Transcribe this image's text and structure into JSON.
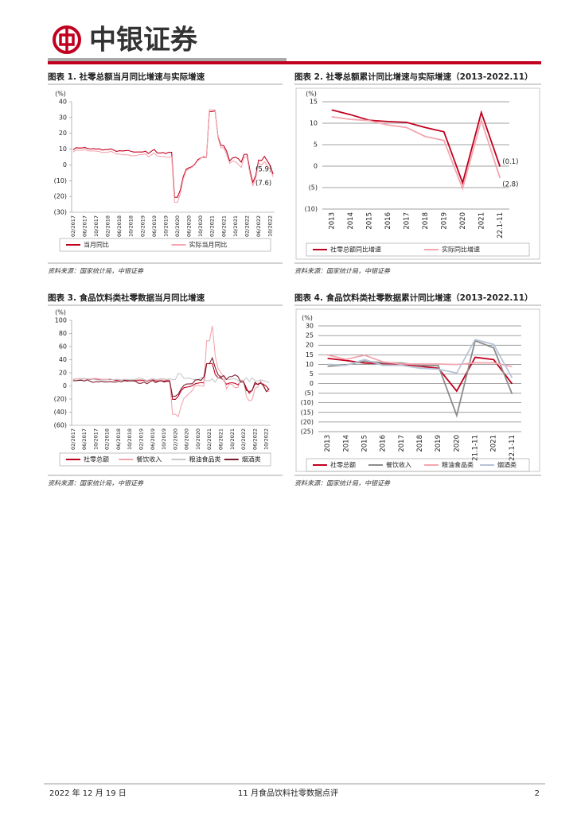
{
  "header": {
    "brand": "中银证券"
  },
  "footer": {
    "date": "2022 年 12 月 19 日",
    "report": "11 月食品饮料社零数据点评",
    "page": "2"
  },
  "chart_data": [
    {
      "type": "line",
      "title": "图表 1. 社零总额当月同比增速与实际增速",
      "source": "资料来源：国家统计局，中银证券",
      "y_label": "(%)",
      "grid": false,
      "categories": [
        "02/2017",
        null,
        null,
        null,
        "06/2017",
        null,
        null,
        null,
        "10/2017",
        null,
        null,
        null,
        "02/2018",
        null,
        null,
        null,
        "06/2018",
        null,
        null,
        null,
        "10/2018",
        null,
        null,
        null,
        "02/2019",
        null,
        null,
        null,
        "06/2019",
        null,
        null,
        null,
        "10/2019",
        null,
        null,
        null,
        "02/2020",
        null,
        null,
        null,
        "06/2020",
        null,
        null,
        null,
        "10/2020",
        null,
        null,
        null,
        "02/2021",
        null,
        null,
        null,
        "06/2021",
        null,
        null,
        null,
        "10/2021",
        null,
        null,
        null,
        "02/2022",
        null,
        null,
        null,
        "06/2022",
        null,
        null,
        null,
        "10/2022",
        null
      ],
      "ylim": [
        -30,
        40
      ],
      "yticks": [
        {
          "value": -30,
          "label": "(30)"
        },
        {
          "value": -20,
          "label": "(20)"
        },
        {
          "value": -10,
          "label": "(10)"
        },
        0,
        10,
        20,
        30,
        40
      ],
      "series": [
        {
          "name": "当月同比",
          "color": "#c0001e",
          "values": [
            9.5,
            10.9,
            10.7,
            10.7,
            11.0,
            10.4,
            10.1,
            10.3,
            10.0,
            10.2,
            9.4,
            9.7,
            9.7,
            10.1,
            9.4,
            8.5,
            9.0,
            8.8,
            9.0,
            9.2,
            8.6,
            8.1,
            8.2,
            8.2,
            8.2,
            8.7,
            7.2,
            8.6,
            9.8,
            7.6,
            7.5,
            7.8,
            7.2,
            8.0,
            8.0,
            -20.5,
            -20.5,
            -15.8,
            -7.5,
            -2.8,
            -1.8,
            -1.1,
            0.5,
            3.3,
            4.3,
            5.0,
            4.6,
            33.8,
            33.8,
            34.2,
            17.7,
            12.4,
            12.1,
            8.5,
            2.5,
            4.4,
            4.9,
            3.9,
            1.7,
            6.7,
            6.7,
            -3.5,
            -11.1,
            -6.7,
            3.1,
            2.7,
            5.4,
            2.5,
            -0.5,
            -5.9
          ],
          "value_labels": [
            null,
            null,
            null,
            null,
            null,
            null,
            null,
            null,
            null,
            null,
            null,
            null,
            null,
            null,
            null,
            null,
            null,
            null,
            null,
            null,
            null,
            null,
            null,
            null,
            null,
            null,
            null,
            null,
            null,
            null,
            null,
            null,
            null,
            null,
            null,
            null,
            null,
            null,
            null,
            null,
            null,
            null,
            null,
            null,
            null,
            null,
            null,
            null,
            null,
            null,
            null,
            null,
            null,
            null,
            null,
            null,
            null,
            null,
            null,
            null,
            null,
            null,
            null,
            null,
            null,
            null,
            null,
            null,
            null,
            "(5.9)"
          ]
        },
        {
          "name": "实际当月同比",
          "color": "#f4a6b0",
          "values": [
            8.1,
            9.4,
            9.3,
            9.2,
            9.7,
            9.0,
            8.8,
            8.9,
            8.7,
            8.5,
            7.8,
            8.0,
            8.0,
            8.6,
            7.8,
            6.8,
            7.0,
            6.5,
            6.4,
            6.4,
            5.8,
            5.8,
            6.0,
            6.6,
            6.6,
            7.0,
            5.1,
            6.4,
            7.5,
            5.7,
            5.4,
            5.5,
            4.9,
            4.9,
            5.1,
            -23.7,
            -23.7,
            -18.1,
            -9.1,
            -3.7,
            -2.5,
            -1.5,
            0.0,
            2.6,
            4.0,
            5.5,
            4.6,
            34.9,
            34.9,
            34.9,
            16.9,
            10.9,
            10.7,
            6.4,
            0.9,
            2.5,
            1.9,
            0.4,
            -1.6,
            4.9,
            4.9,
            -5.6,
            -13.2,
            -8.7,
            1.2,
            -0.1,
            2.0,
            -0.5,
            -2.8,
            -7.6
          ],
          "value_labels": [
            null,
            null,
            null,
            null,
            null,
            null,
            null,
            null,
            null,
            null,
            null,
            null,
            null,
            null,
            null,
            null,
            null,
            null,
            null,
            null,
            null,
            null,
            null,
            null,
            null,
            null,
            null,
            null,
            null,
            null,
            null,
            null,
            null,
            null,
            null,
            null,
            null,
            null,
            null,
            null,
            null,
            null,
            null,
            null,
            null,
            null,
            null,
            null,
            null,
            null,
            null,
            null,
            null,
            null,
            null,
            null,
            null,
            null,
            null,
            null,
            null,
            null,
            null,
            null,
            null,
            null,
            null,
            null,
            null,
            "(7.6)"
          ]
        }
      ]
    },
    {
      "type": "line",
      "title": "图表 2. 社零总额累计同比增速与实际增速（2013-2022.11）",
      "source": "资料来源：国家统计局，中银证券",
      "y_label": "(%)",
      "grid": true,
      "categories": [
        "2013",
        "2014",
        "2015",
        "2016",
        "2017",
        "2018",
        "2019",
        "2020",
        "2021",
        "22.1-11"
      ],
      "ylim": [
        -10,
        15
      ],
      "yticks": [
        {
          "value": -10,
          "label": "(10)"
        },
        {
          "value": -5,
          "label": "(5)"
        },
        0,
        5,
        10,
        15
      ],
      "series": [
        {
          "name": "社零总额同比增速",
          "color": "#c0001e",
          "values": [
            13.1,
            12.0,
            10.7,
            10.4,
            10.2,
            9.0,
            8.0,
            -3.9,
            12.5,
            -0.1
          ],
          "value_labels": [
            null,
            null,
            null,
            null,
            null,
            null,
            null,
            null,
            null,
            "(0.1)"
          ]
        },
        {
          "name": "实际同比增速",
          "color": "#f4a6b0",
          "values": [
            11.5,
            10.9,
            10.6,
            9.6,
            9.0,
            6.9,
            6.0,
            -5.2,
            10.7,
            -2.8
          ],
          "value_labels": [
            null,
            null,
            null,
            null,
            null,
            null,
            null,
            null,
            null,
            "(2.8)"
          ]
        }
      ]
    },
    {
      "type": "line",
      "title": "图表 3. 食品饮料类社零数据当月同比增速",
      "source": "资料来源：国家统计局，中银证券",
      "y_label": "(%)",
      "grid": false,
      "categories": [
        "02/2017",
        null,
        null,
        null,
        "06/2017",
        null,
        null,
        null,
        "10/2017",
        null,
        null,
        null,
        "02/2018",
        null,
        null,
        null,
        "06/2018",
        null,
        null,
        null,
        "10/2018",
        null,
        null,
        null,
        "02/2019",
        null,
        null,
        null,
        "06/2019",
        null,
        null,
        null,
        "10/2019",
        null,
        null,
        null,
        "02/2020",
        null,
        null,
        null,
        "06/2020",
        null,
        null,
        null,
        "10/2020",
        null,
        null,
        null,
        "02/2021",
        null,
        null,
        null,
        "06/2021",
        null,
        null,
        null,
        "10/2021",
        null,
        null,
        null,
        "02/2022",
        null,
        null,
        null,
        "06/2022",
        null,
        null,
        null,
        "10/2022",
        null
      ],
      "ylim": [
        -60,
        100
      ],
      "yticks": [
        {
          "value": -60,
          "label": "(60)"
        },
        {
          "value": -40,
          "label": "(40)"
        },
        {
          "value": -20,
          "label": "(20)"
        },
        0,
        20,
        40,
        60,
        80,
        100
      ],
      "series": [
        {
          "name": "社零总额",
          "color": "#c0001e",
          "values": [
            9.5,
            10.9,
            10.7,
            10.7,
            11.0,
            10.4,
            10.1,
            10.3,
            10.0,
            10.2,
            9.4,
            9.7,
            9.7,
            10.1,
            9.4,
            8.5,
            9.0,
            8.8,
            9.0,
            9.2,
            8.6,
            8.1,
            8.2,
            8.2,
            8.2,
            8.7,
            7.2,
            8.6,
            9.8,
            7.6,
            7.5,
            7.8,
            7.2,
            8.0,
            8.0,
            -20.5,
            -20.5,
            -15.8,
            -7.5,
            -2.8,
            -1.8,
            -1.1,
            0.5,
            3.3,
            4.3,
            5.0,
            4.6,
            33.8,
            33.8,
            34.2,
            17.7,
            12.4,
            12.1,
            8.5,
            2.5,
            4.4,
            4.9,
            3.9,
            1.7,
            6.7,
            6.7,
            -3.5,
            -11.1,
            -6.7,
            3.1,
            2.7,
            5.4,
            2.5,
            -0.5,
            -5.9
          ]
        },
        {
          "name": "餐饮收入",
          "color": "#f4a6b0",
          "values": [
            9.4,
            10.5,
            10.5,
            11.0,
            11.5,
            10.9,
            10.5,
            11.3,
            11.6,
            10.8,
            10.4,
            10.3,
            10.3,
            10.7,
            9.4,
            9.9,
            10.0,
            9.0,
            9.9,
            9.7,
            9.4,
            9.4,
            10.3,
            9.7,
            9.7,
            9.5,
            8.5,
            9.3,
            10.2,
            9.8,
            9.3,
            9.4,
            9.1,
            9.4,
            9.1,
            -43.1,
            -43.1,
            -46.8,
            -31.1,
            -18.9,
            -15.2,
            -11.0,
            -7.0,
            0.6,
            0.8,
            0.6,
            -0.6,
            68.9,
            68.9,
            91.6,
            46.4,
            26.6,
            20.4,
            14.3,
            -4.5,
            3.1,
            2.0,
            -2.7,
            -2.2,
            8.9,
            8.9,
            -16.4,
            -22.7,
            -21.1,
            -4.0,
            -1.5,
            8.4,
            -1.7,
            -8.1,
            -8.4
          ]
        },
        {
          "name": "粮油食品类",
          "color": "#c8c8c8",
          "values": [
            10.5,
            10.5,
            11.5,
            11.0,
            11.0,
            10.5,
            11.0,
            10.0,
            9.5,
            9.0,
            9.0,
            9.0,
            9.0,
            11.0,
            9.0,
            10.0,
            9.5,
            9.0,
            10.0,
            10.0,
            9.0,
            9.5,
            10.0,
            12.0,
            12.0,
            9.5,
            8.0,
            10.0,
            11.0,
            10.0,
            10.0,
            11.0,
            11.0,
            10.0,
            11.0,
            9.7,
            9.7,
            19.0,
            17.9,
            11.4,
            11.5,
            12.2,
            10.0,
            9.9,
            9.0,
            13.0,
            9.4,
            8.0,
            8.0,
            10.9,
            5.6,
            12.9,
            15.6,
            8.1,
            10.4,
            9.7,
            11.3,
            10.7,
            8.4,
            7.6,
            7.6,
            12.5,
            6.9,
            12.3,
            8.0,
            7.6,
            9.1,
            8.5,
            6.7,
            5.4
          ]
        },
        {
          "name": "烟酒类",
          "color": "#7b1c2c",
          "values": [
            8.0,
            8.0,
            8.6,
            8.7,
            7.5,
            9.2,
            7.3,
            5.4,
            6.5,
            6.3,
            7.0,
            6.1,
            6.1,
            6.7,
            6.0,
            6.0,
            7.1,
            6.2,
            8.1,
            7.4,
            7.8,
            7.7,
            7.2,
            4.0,
            4.0,
            6.0,
            3.4,
            6.0,
            8.4,
            5.0,
            7.0,
            8.0,
            6.0,
            7.0,
            7.0,
            -15.7,
            -15.7,
            -12.6,
            -4.8,
            1.0,
            3.0,
            3.1,
            3.4,
            8.9,
            9.7,
            8.4,
            14.0,
            34.1,
            34.1,
            42.8,
            28.1,
            17.3,
            13.2,
            15.8,
            9.8,
            14.1,
            14.4,
            16.9,
            14.4,
            5.9,
            5.9,
            -7.0,
            -8.3,
            -7.3,
            5.6,
            2.1,
            4.2,
            0.8,
            -8.7,
            -4.2
          ]
        }
      ]
    },
    {
      "type": "line",
      "title": "图表 4. 食品饮料类社零数据累计同比增速（2013-2022.11）",
      "source": "资料来源：国家统计局，中银证券",
      "y_label": "(%)",
      "grid": true,
      "categories": [
        "2013",
        "2014",
        "2015",
        "2016",
        "2017",
        "2018",
        "2019",
        "2020",
        "21.1-11",
        "2021",
        "22.1-11"
      ],
      "ylim": [
        -25,
        30
      ],
      "yticks": [
        {
          "value": -25,
          "label": "(25)"
        },
        {
          "value": -20,
          "label": "(20)"
        },
        {
          "value": -15,
          "label": "(15)"
        },
        {
          "value": -10,
          "label": "(10)"
        },
        {
          "value": -5,
          "label": "(5)"
        },
        0,
        5,
        10,
        15,
        20,
        25,
        30
      ],
      "series": [
        {
          "name": "社零总额",
          "color": "#c0001e",
          "values": [
            13.1,
            12.0,
            10.7,
            10.4,
            10.2,
            9.0,
            8.0,
            -3.9,
            13.7,
            12.5,
            -0.1
          ]
        },
        {
          "name": "餐饮收入",
          "color": "#8c8c8c",
          "values": [
            9.0,
            9.7,
            11.7,
            10.8,
            10.7,
            9.5,
            9.4,
            -16.6,
            22.3,
            18.6,
            -5.4
          ]
        },
        {
          "name": "粮油食品类",
          "color": "#f4a6b0",
          "values": [
            14.9,
            12.6,
            14.8,
            11.3,
            10.2,
            10.2,
            10.2,
            9.9,
            10.8,
            10.8,
            8.8
          ]
        },
        {
          "name": "烟酒类",
          "color": "#b8c4d8",
          "values": [
            10.0,
            9.5,
            12.5,
            9.5,
            9.5,
            8.0,
            7.5,
            5.5,
            22.9,
            20.4,
            3.0
          ]
        }
      ]
    }
  ]
}
